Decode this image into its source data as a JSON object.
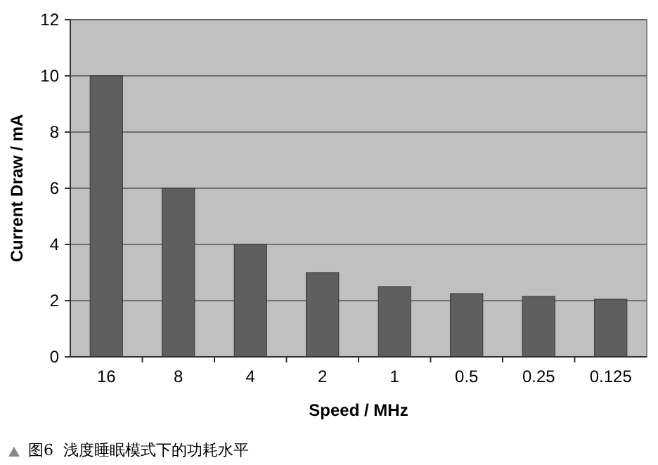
{
  "chart_data": {
    "type": "bar",
    "xlabel": "Speed / MHz",
    "ylabel": "Current Draw / mA",
    "categories": [
      "16",
      "8",
      "4",
      "2",
      "1",
      "0.5",
      "0.25",
      "0.125"
    ],
    "values": [
      10,
      6,
      4,
      3,
      2.5,
      2.25,
      2.15,
      2.05
    ],
    "color": "#5f5f5f",
    "ylim": [
      0,
      12
    ],
    "yticks": [
      0,
      2,
      4,
      6,
      8,
      10,
      12
    ],
    "grid": "y",
    "annotations": [
      "图6  浅度睡眠模式下的功耗水平"
    ]
  }
}
